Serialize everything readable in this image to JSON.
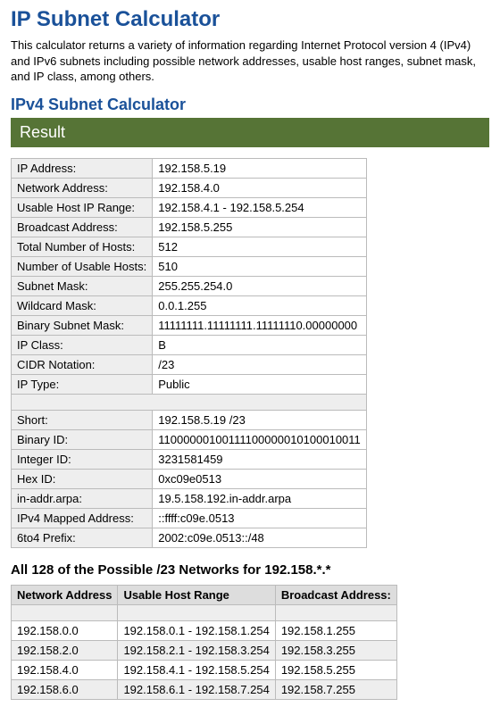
{
  "page": {
    "title": "IP Subnet Calculator",
    "intro": "This calculator returns a variety of information regarding Internet Protocol version 4 (IPv4) and IPv6 subnets including possible network addresses, usable host ranges, subnet mask, and IP class, among others.",
    "section_heading": "IPv4 Subnet Calculator",
    "result_label": "Result"
  },
  "colors": {
    "heading": "#1a5199",
    "result_bar_bg": "#567436",
    "result_bar_text": "#ffffff",
    "cell_border": "#bbbbbb",
    "alt_row_bg": "#eeeeee",
    "body_text": "#000000",
    "background": "#ffffff"
  },
  "result_rows_block1": [
    {
      "label": "IP Address:",
      "value": "192.158.5.19"
    },
    {
      "label": "Network Address:",
      "value": "192.158.4.0"
    },
    {
      "label": "Usable Host IP Range:",
      "value": "192.158.4.1 - 192.158.5.254"
    },
    {
      "label": "Broadcast Address:",
      "value": "192.158.5.255"
    },
    {
      "label": "Total Number of Hosts:",
      "value": "512"
    },
    {
      "label": "Number of Usable Hosts:",
      "value": "510"
    },
    {
      "label": "Subnet Mask:",
      "value": "255.255.254.0"
    },
    {
      "label": "Wildcard Mask:",
      "value": "0.0.1.255"
    },
    {
      "label": "Binary Subnet Mask:",
      "value": "11111111.11111111.11111110.00000000"
    },
    {
      "label": "IP Class:",
      "value": "B"
    },
    {
      "label": "CIDR Notation:",
      "value": "/23"
    },
    {
      "label": "IP Type:",
      "value": "Public"
    }
  ],
  "result_rows_block2": [
    {
      "label": "Short:",
      "value": "192.158.5.19 /23"
    },
    {
      "label": "Binary ID:",
      "value": "11000000100111100000010100010011"
    },
    {
      "label": "Integer ID:",
      "value": "3231581459"
    },
    {
      "label": "Hex ID:",
      "value": "0xc09e0513"
    },
    {
      "label": "in-addr.arpa:",
      "value": "19.5.158.192.in-addr.arpa"
    },
    {
      "label": "IPv4 Mapped Address:",
      "value": "::ffff:c09e.0513"
    },
    {
      "label": "6to4 Prefix:",
      "value": "2002:c09e.0513::/48"
    }
  ],
  "networks": {
    "title": "All 128 of the Possible /23 Networks for 192.158.*.*",
    "columns": [
      "Network Address",
      "Usable Host Range",
      "Broadcast Address:"
    ],
    "rows": [
      [
        "192.158.0.0",
        "192.158.0.1 - 192.158.1.254",
        "192.158.1.255"
      ],
      [
        "192.158.2.0",
        "192.158.2.1 - 192.158.3.254",
        "192.158.3.255"
      ],
      [
        "192.158.4.0",
        "192.158.4.1 - 192.158.5.254",
        "192.158.5.255"
      ],
      [
        "192.158.6.0",
        "192.158.6.1 - 192.158.7.254",
        "192.158.7.255"
      ]
    ]
  }
}
